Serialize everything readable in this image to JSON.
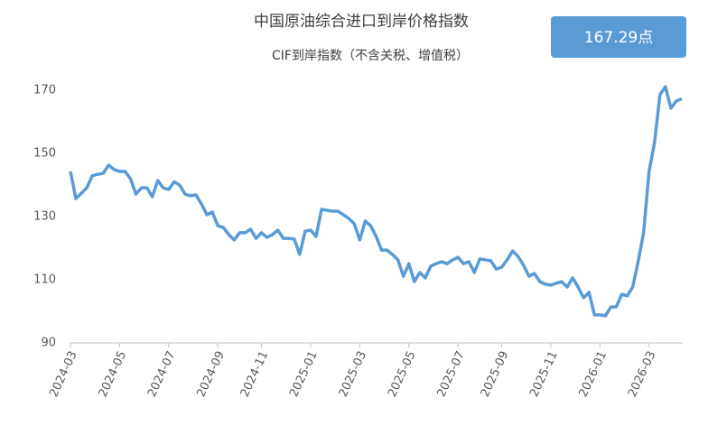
{
  "chart_data": {
    "type": "line",
    "title": "中国原油综合进口到岸价格指数",
    "subtitle": "CIF到岸指数（不含关税、增值税）",
    "annotation": "167.29点",
    "categories": [
      "2024-03",
      null,
      null,
      null,
      null,
      null,
      null,
      null,
      null,
      "2024-05",
      null,
      null,
      null,
      null,
      null,
      null,
      null,
      null,
      "2024-07",
      null,
      null,
      null,
      null,
      null,
      null,
      null,
      null,
      "2024-09",
      null,
      null,
      null,
      null,
      null,
      null,
      null,
      "2024-11",
      null,
      null,
      null,
      null,
      null,
      null,
      null,
      null,
      "2025-01",
      null,
      null,
      null,
      null,
      null,
      null,
      null,
      null,
      "2025-03",
      null,
      null,
      null,
      null,
      null,
      null,
      null,
      null,
      "2025-05",
      null,
      null,
      null,
      null,
      null,
      null,
      null,
      null,
      "2025-07",
      null,
      null,
      null,
      null,
      null,
      null,
      null,
      "2025-09",
      null,
      null,
      null,
      null,
      null,
      null,
      null,
      null,
      "2025-11",
      null,
      null,
      null,
      null,
      null,
      null,
      null,
      null,
      "2026-01",
      null,
      null,
      null,
      null,
      null,
      null,
      null,
      null,
      "2026-03",
      null,
      null,
      null,
      null,
      null,
      null
    ],
    "series": [
      {
        "color": "#5b9bd5",
        "values": [
          144.3,
          135.7,
          137.4,
          139.1,
          142.9,
          143.4,
          143.7,
          146.3,
          144.9,
          144.3,
          144.3,
          142,
          137.1,
          139.1,
          139.1,
          136.3,
          141.4,
          139.1,
          138.6,
          141,
          140,
          137.1,
          136.6,
          136.9,
          134,
          130.6,
          131.4,
          127.1,
          126.6,
          124.3,
          122.6,
          124.9,
          124.9,
          126,
          123.1,
          124.9,
          123.4,
          124.3,
          125.7,
          123.1,
          123.1,
          122.9,
          118,
          125.4,
          125.7,
          123.7,
          132.3,
          132,
          131.7,
          131.7,
          130.6,
          129.4,
          127.7,
          122.6,
          128.6,
          127.1,
          123.7,
          119.4,
          119.4,
          118,
          116.3,
          111.1,
          115.1,
          109.4,
          112.3,
          110.6,
          114.3,
          115.1,
          115.7,
          115.1,
          116.3,
          117.1,
          115.1,
          115.7,
          112.3,
          116.6,
          116.3,
          116,
          113.4,
          114,
          116.3,
          119.1,
          117.4,
          114.6,
          111.1,
          112,
          109.4,
          108.6,
          108.3,
          108.9,
          109.4,
          107.7,
          110.6,
          107.7,
          104.3,
          106,
          98.9,
          98.9,
          98.6,
          101.4,
          101.4,
          105.4,
          104.9,
          107.7,
          115.7,
          124.9,
          144.3,
          153.4,
          168.6,
          171.1,
          164.3,
          166.6,
          167.3
        ]
      }
    ],
    "ylim": [
      90,
      170
    ],
    "yticks": [
      90,
      110,
      130,
      150,
      170
    ],
    "grid": false
  }
}
